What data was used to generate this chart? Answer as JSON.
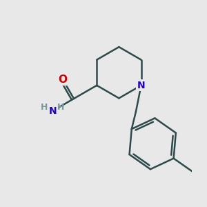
{
  "bg_color": "#e8e8e8",
  "bond_color": "#2d4a4a",
  "N_color": "#2200cc",
  "O_color": "#cc0000",
  "H_color": "#7a9a9a",
  "bond_width": 1.8,
  "figsize": [
    3.0,
    3.0
  ],
  "dpi": 100,
  "xlim": [
    -1.8,
    2.2
  ],
  "ylim": [
    -3.0,
    1.6
  ]
}
